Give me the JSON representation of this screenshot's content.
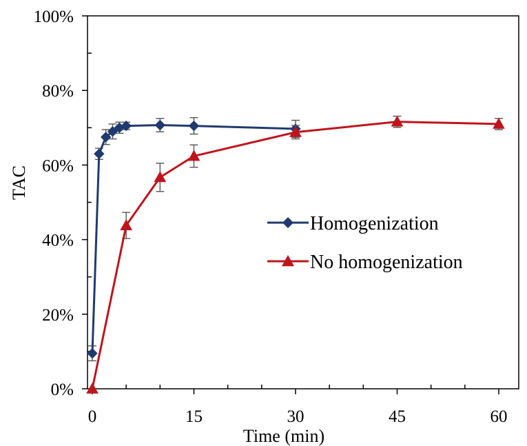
{
  "chart_data": {
    "type": "line",
    "xlabel": "Time (min)",
    "ylabel": "TAC",
    "xlim": [
      0,
      60
    ],
    "ylim": [
      0,
      100
    ],
    "x_ticks": [
      0,
      15,
      30,
      45,
      60
    ],
    "x_tick_labels": [
      "0",
      "15",
      "30",
      "45",
      "60"
    ],
    "y_ticks": [
      0,
      20,
      40,
      60,
      80,
      100
    ],
    "y_tick_labels": [
      "0%",
      "20%",
      "40%",
      "60%",
      "80%",
      "100%"
    ],
    "grid": false,
    "legend_position": "center-right",
    "series": [
      {
        "name": "Homogenization",
        "color": "#1F3A6E",
        "marker": "diamond",
        "x": [
          0,
          1,
          2,
          3,
          4,
          5,
          10,
          15,
          30
        ],
        "y": [
          9.5,
          63,
          67.5,
          69,
          70,
          70.5,
          70.7,
          70.5,
          69.7
        ],
        "error": [
          2,
          1.5,
          2,
          2,
          1.5,
          1,
          1.8,
          2.2,
          2.3
        ]
      },
      {
        "name": "No homogenization",
        "color": "#C0141C",
        "marker": "triangle",
        "x": [
          0,
          5,
          10,
          15,
          30,
          45,
          60
        ],
        "y": [
          0,
          43.8,
          56.7,
          62.4,
          68.8,
          71.6,
          71
        ],
        "error": [
          0,
          3.5,
          3.8,
          3.0,
          1.8,
          1.5,
          1.5
        ]
      }
    ]
  }
}
